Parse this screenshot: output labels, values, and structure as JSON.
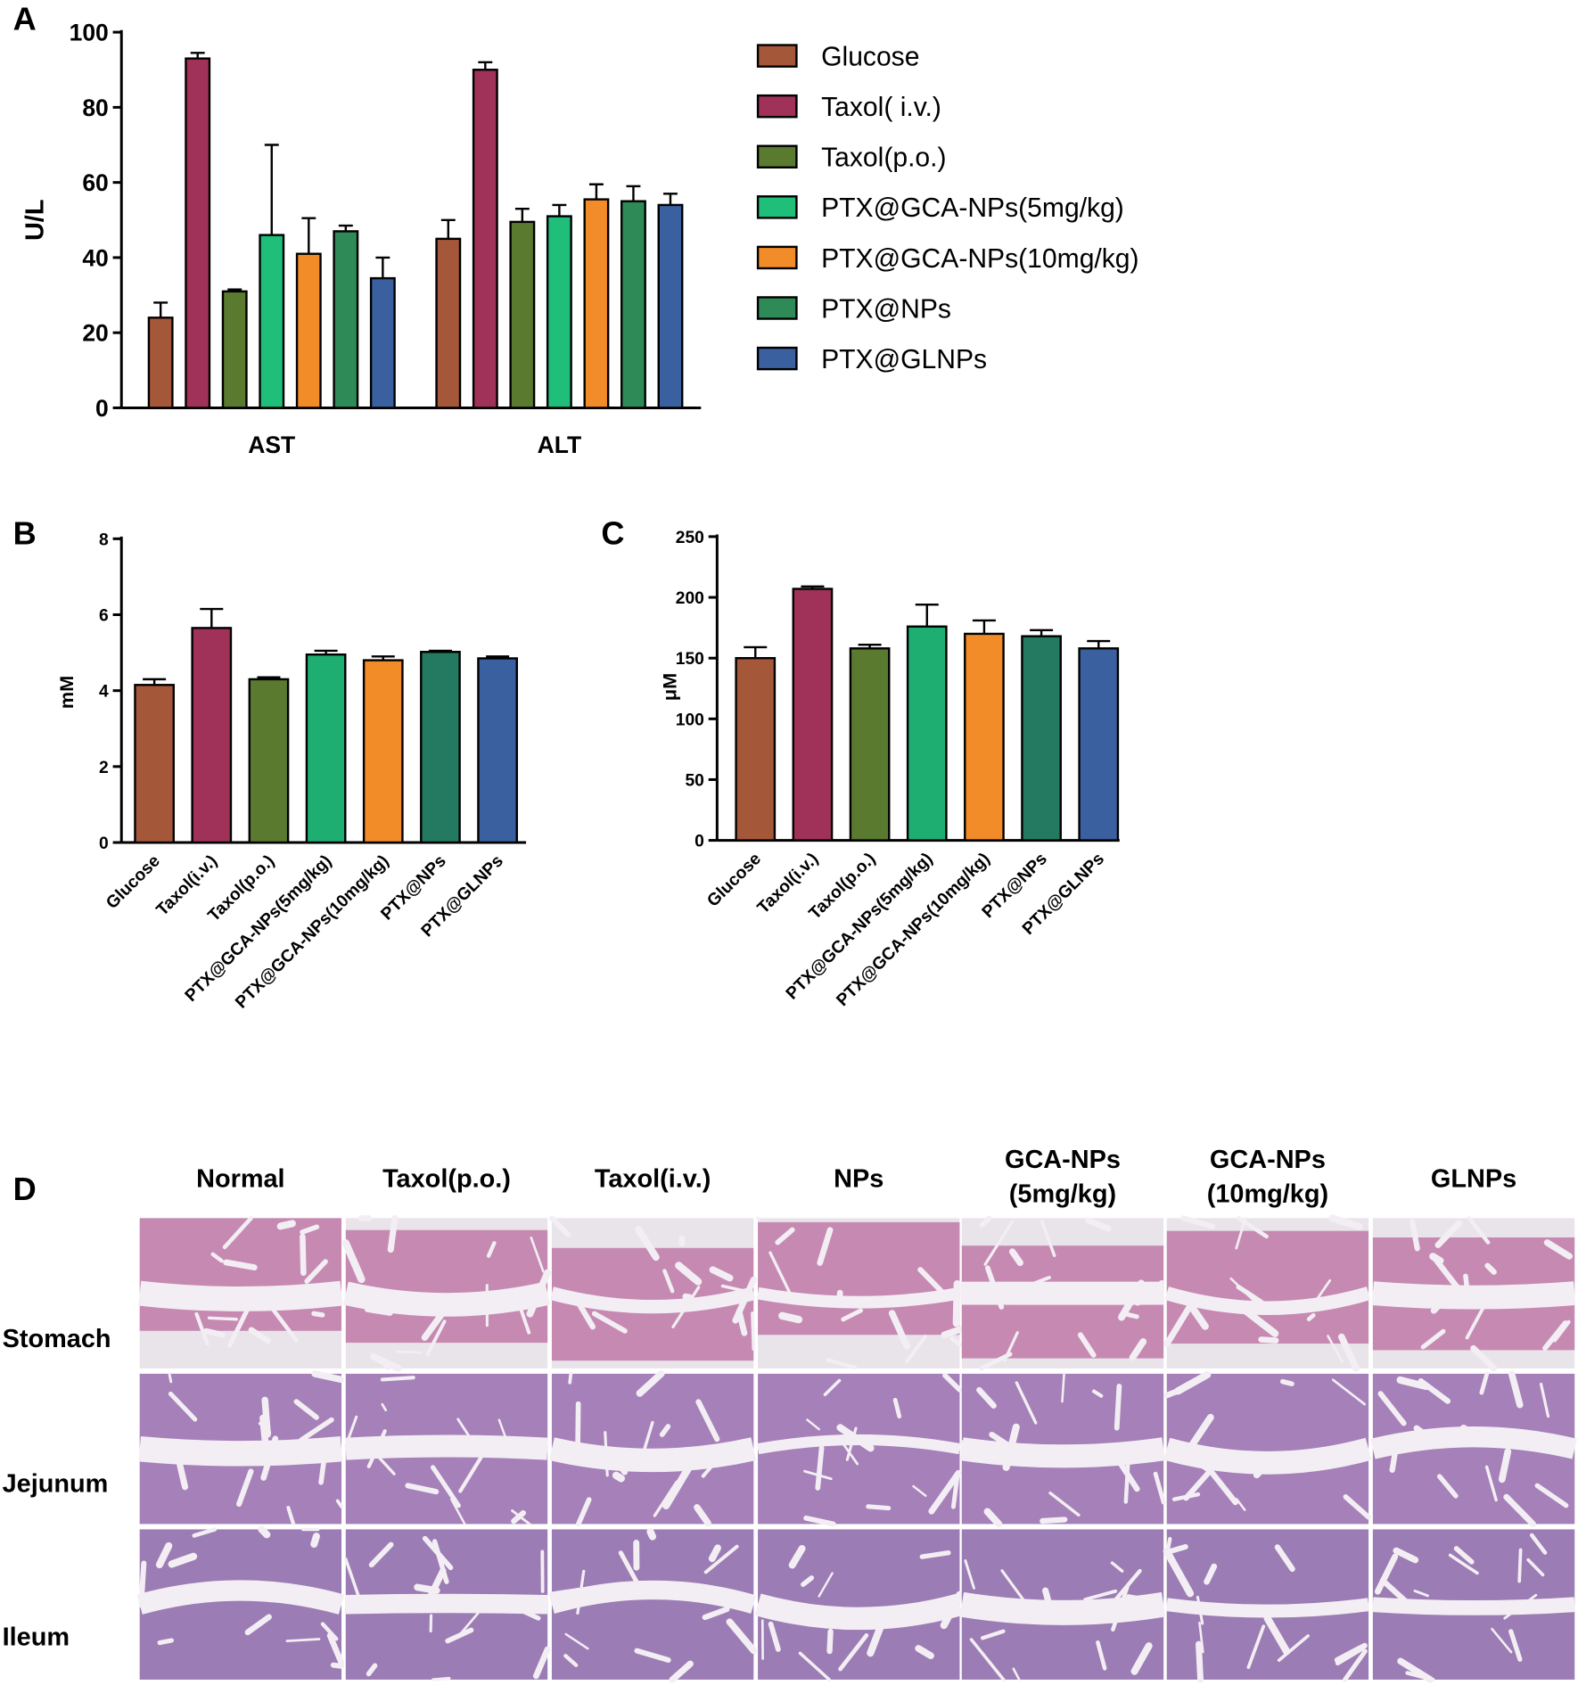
{
  "chart_data": [
    {
      "type": "bar",
      "panel": "A",
      "ylabel": "U/L",
      "categories": [
        "AST",
        "ALT"
      ],
      "ylim": [
        0,
        100
      ],
      "yticks": [
        0,
        20,
        40,
        60,
        80,
        100
      ],
      "series": [
        {
          "name": "Glucose",
          "color": "#a5573a",
          "values": [
            24,
            45
          ],
          "errors": [
            4,
            5
          ]
        },
        {
          "name": "Taxol( i.v.)",
          "color": "#a0325a",
          "values": [
            93,
            90
          ],
          "errors": [
            1.5,
            2
          ]
        },
        {
          "name": "Taxol(p.o.)",
          "color": "#5a7a30",
          "values": [
            31,
            49.5
          ],
          "errors": [
            0.5,
            3.5
          ]
        },
        {
          "name": "PTX@GCA-NPs(5mg/kg)",
          "color": "#1fbf7a",
          "values": [
            46,
            51
          ],
          "errors": [
            24,
            3
          ]
        },
        {
          "name": "PTX@GCA-NPs(10mg/kg)",
          "color": "#f28c28",
          "values": [
            41,
            55.5
          ],
          "errors": [
            9.5,
            4
          ]
        },
        {
          "name": "PTX@NPs",
          "color": "#2e8b57",
          "values": [
            47,
            55
          ],
          "errors": [
            1.5,
            4
          ]
        },
        {
          "name": "PTX@GLNPs",
          "color": "#3b60a0",
          "values": [
            34.5,
            54
          ],
          "errors": [
            5.5,
            3
          ]
        }
      ]
    },
    {
      "type": "bar",
      "panel": "B",
      "ylabel": "mM",
      "categories": [
        "Glucose",
        "Taxol(i.v.)",
        "Taxol(p.o.)",
        "PTX@GCA-NPs(5mg/kg)",
        "PTX@GCA-NPs(10mg/kg)",
        "PTX@NPs",
        "PTX@GLNPs"
      ],
      "values": [
        4.15,
        5.65,
        4.3,
        4.95,
        4.8,
        5.02,
        4.85
      ],
      "errors": [
        0.15,
        0.5,
        0.05,
        0.1,
        0.1,
        0.03,
        0.05
      ],
      "colors": [
        "#a5573a",
        "#a0325a",
        "#5a7a30",
        "#1fae72",
        "#f28c28",
        "#237a60",
        "#3b60a0"
      ],
      "ylim": [
        0,
        8
      ],
      "yticks": [
        0,
        2,
        4,
        6,
        8
      ]
    },
    {
      "type": "bar",
      "panel": "C",
      "ylabel": "μM",
      "categories": [
        "Glucose",
        "Taxol(i.v.)",
        "Taxol(p.o.)",
        "PTX@GCA-NPs(5mg/kg)",
        "PTX@GCA-NPs(10mg/kg)",
        "PTX@NPs",
        "PTX@GLNPs"
      ],
      "values": [
        150,
        207,
        158,
        176,
        170,
        168,
        158
      ],
      "errors": [
        9,
        2,
        3,
        18,
        11,
        5,
        6
      ],
      "colors": [
        "#a5573a",
        "#a0325a",
        "#5a7a30",
        "#1fae72",
        "#f28c28",
        "#237a60",
        "#3b60a0"
      ],
      "ylim": [
        0,
        250
      ],
      "yticks": [
        0,
        50,
        100,
        150,
        200,
        250
      ]
    }
  ],
  "histology": {
    "panel": "D",
    "columns": [
      [
        "Normal"
      ],
      [
        "Taxol(p.o.)"
      ],
      [
        "Taxol(i.v.)"
      ],
      [
        "NPs"
      ],
      [
        "GCA-NPs",
        "(5mg/kg)"
      ],
      [
        "GCA-NPs",
        "(10mg/kg)"
      ],
      [
        "GLNPs"
      ]
    ],
    "rows": [
      "Stomach",
      "Jejunum",
      "Ileum"
    ]
  }
}
